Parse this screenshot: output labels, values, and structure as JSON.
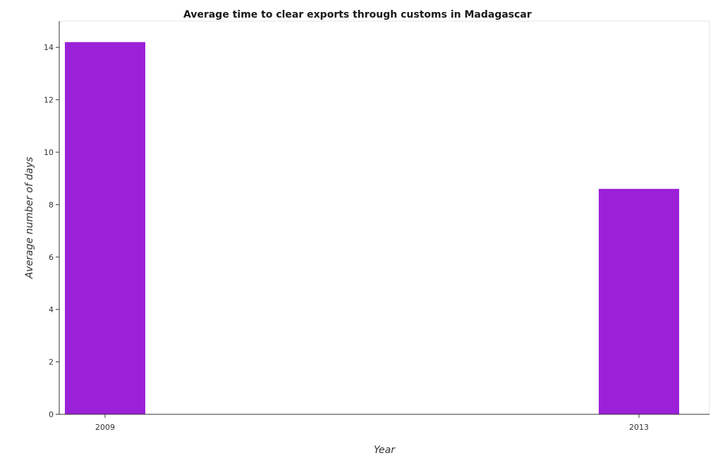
{
  "chart_data": {
    "type": "bar",
    "title": "Average time to clear exports through customs in Madagascar",
    "xlabel": "Year",
    "ylabel": "Average number of days",
    "categories": [
      "2009",
      "2013"
    ],
    "values": [
      14.2,
      8.6
    ],
    "ylim": [
      0,
      15
    ],
    "yticks": [
      0,
      2,
      4,
      6,
      8,
      10,
      12,
      14
    ],
    "bar_color": "#9b21d8",
    "grid": false,
    "legend": "none"
  }
}
